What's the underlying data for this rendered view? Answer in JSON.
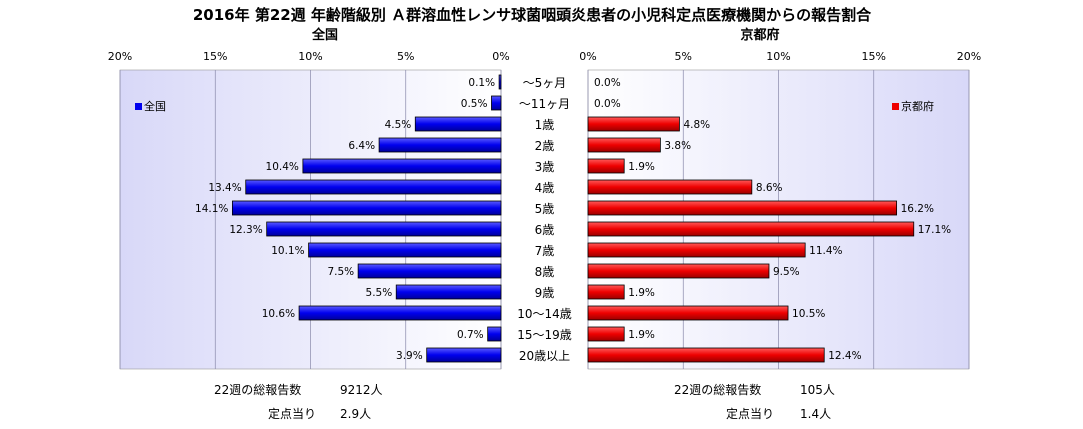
{
  "title": "2016年 第22週 年齢階級別 Ａ群溶血性レンサ球菌咽頭炎患者の小児科定点医療機関からの報告割合",
  "categories": [
    "～5ヶ月",
    "～11ヶ月",
    "1歳",
    "2歳",
    "3歳",
    "4歳",
    "5歳",
    "6歳",
    "7歳",
    "8歳",
    "9歳",
    "10～14歳",
    "15～19歳",
    "20歳以上"
  ],
  "colors": {
    "national": "#0000ee",
    "kyoto": "#ee0000",
    "plot_bg_center": "#ffffff",
    "plot_bg_edge": "#d8d8f8",
    "grid": "#8888aa"
  },
  "chart_data": [
    {
      "type": "bar",
      "orientation": "horizontal",
      "direction": "leftward",
      "title": "全国",
      "xlim": [
        0,
        20
      ],
      "ticks": [
        "20%",
        "15%",
        "10%",
        "5%",
        "0%"
      ],
      "tick_values": [
        20,
        15,
        10,
        5,
        0
      ],
      "legend": "全国",
      "legend_position": "top-left",
      "grid": true,
      "series": [
        {
          "name": "全国",
          "values": [
            0.1,
            0.5,
            4.5,
            6.4,
            10.4,
            13.4,
            14.1,
            12.3,
            10.1,
            7.5,
            5.5,
            10.6,
            0.7,
            3.9
          ]
        }
      ],
      "value_labels": [
        "0.1%",
        "0.5%",
        "4.5%",
        "6.4%",
        "10.4%",
        "13.4%",
        "14.1%",
        "12.3%",
        "10.1%",
        "7.5%",
        "5.5%",
        "10.6%",
        "0.7%",
        "3.9%"
      ]
    },
    {
      "type": "bar",
      "orientation": "horizontal",
      "direction": "rightward",
      "title": "京都府",
      "xlim": [
        0,
        20
      ],
      "ticks": [
        "0%",
        "5%",
        "10%",
        "15%",
        "20%"
      ],
      "tick_values": [
        0,
        5,
        10,
        15,
        20
      ],
      "legend": "京都府",
      "legend_position": "top-right",
      "grid": true,
      "series": [
        {
          "name": "京都府",
          "values": [
            0.0,
            0.0,
            4.8,
            3.8,
            1.9,
            8.6,
            16.2,
            17.1,
            11.4,
            9.5,
            1.9,
            10.5,
            1.9,
            12.4
          ]
        }
      ],
      "value_labels": [
        "0.0%",
        "0.0%",
        "4.8%",
        "3.8%",
        "1.9%",
        "8.6%",
        "16.2%",
        "17.1%",
        "11.4%",
        "9.5%",
        "1.9%",
        "10.5%",
        "1.9%",
        "12.4%"
      ]
    }
  ],
  "summary": {
    "national": {
      "total_label": "22週の総報告数",
      "total_value": "9212人",
      "per_label": "定点当り",
      "per_value": "2.9人"
    },
    "kyoto": {
      "total_label": "22週の総報告数",
      "total_value": "105人",
      "per_label": "定点当り",
      "per_value": "1.4人"
    }
  }
}
